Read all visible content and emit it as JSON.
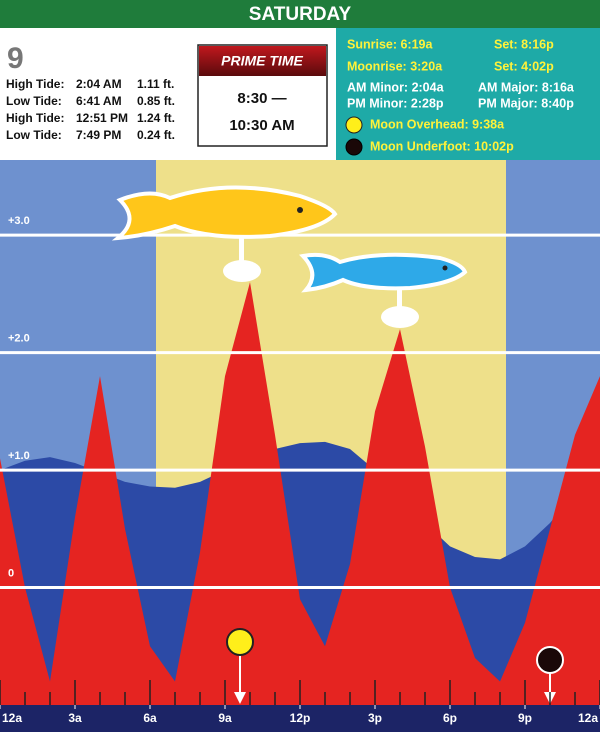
{
  "header": {
    "day": "SATURDAY"
  },
  "date": "9",
  "tides": [
    {
      "label": "High Tide:",
      "time": "2:04 AM",
      "height": "1.11 ft."
    },
    {
      "label": "Low Tide:",
      "time": "6:41 AM",
      "height": "0.85 ft."
    },
    {
      "label": "High Tide:",
      "time": "12:51 PM",
      "height": "1.24 ft."
    },
    {
      "label": "Low Tide:",
      "time": "7:49 PM",
      "height": "0.24 ft."
    }
  ],
  "prime_time": {
    "title": "PRIME TIME",
    "start": "8:30 —",
    "end": "10:30 AM"
  },
  "sun_moon": {
    "sunrise": "Sunrise: 6:19a",
    "sunset": "Set: 8:16p",
    "moonrise": "Moonrise: 3:20a",
    "moonset": "Set: 4:02p",
    "am_minor": "AM Minor: 2:04a",
    "am_major": "AM Major: 8:16a",
    "pm_minor": "PM Minor: 2:28p",
    "pm_major": "PM Major: 8:40p",
    "moon_overhead": "Moon Overhead: 9:38a",
    "moon_underfoot": "Moon Underfoot: 10:02p"
  },
  "chart_data": {
    "type": "tide",
    "x": [
      0,
      1,
      2,
      3,
      4,
      5,
      6,
      7,
      8,
      9,
      10,
      11,
      12,
      13,
      14,
      15,
      16,
      17,
      18,
      19,
      20,
      21,
      22,
      23,
      24
    ],
    "xlim": [
      0,
      24
    ],
    "xticks": [
      {
        "value": 0,
        "label": "12a"
      },
      {
        "value": 3,
        "label": "3a"
      },
      {
        "value": 6,
        "label": "6a"
      },
      {
        "value": 9,
        "label": "9a"
      },
      {
        "value": 12,
        "label": "12p"
      },
      {
        "value": 15,
        "label": "3p"
      },
      {
        "value": 18,
        "label": "6p"
      },
      {
        "value": 21,
        "label": "9p"
      },
      {
        "value": 24,
        "label": "12a"
      }
    ],
    "ylim": [
      -1,
      3.64
    ],
    "yticks": [
      {
        "value": 3,
        "label": "+3.0"
      },
      {
        "value": 2,
        "label": "+2.0"
      },
      {
        "value": 1,
        "label": "+1.0"
      },
      0
    ],
    "grid": true,
    "series": [
      {
        "color": "#2c4aa6",
        "values": [
          1.0,
          1.08,
          1.11,
          1.06,
          0.98,
          0.9,
          0.86,
          0.85,
          0.9,
          1.0,
          1.1,
          1.18,
          1.23,
          1.24,
          1.18,
          1.0,
          0.8,
          0.55,
          0.35,
          0.26,
          0.24,
          0.35,
          0.55,
          0.8,
          1.0
        ]
      },
      {
        "color": "#e52421",
        "values": [
          1.1,
          0.0,
          -0.8,
          0.6,
          1.8,
          0.5,
          -0.5,
          -0.8,
          0.3,
          1.8,
          2.6,
          1.3,
          -0.1,
          -0.5,
          0.2,
          1.5,
          2.2,
          1.2,
          0.0,
          -0.6,
          -0.8,
          -0.3,
          0.5,
          1.3,
          1.8
        ]
      }
    ]
  }
}
